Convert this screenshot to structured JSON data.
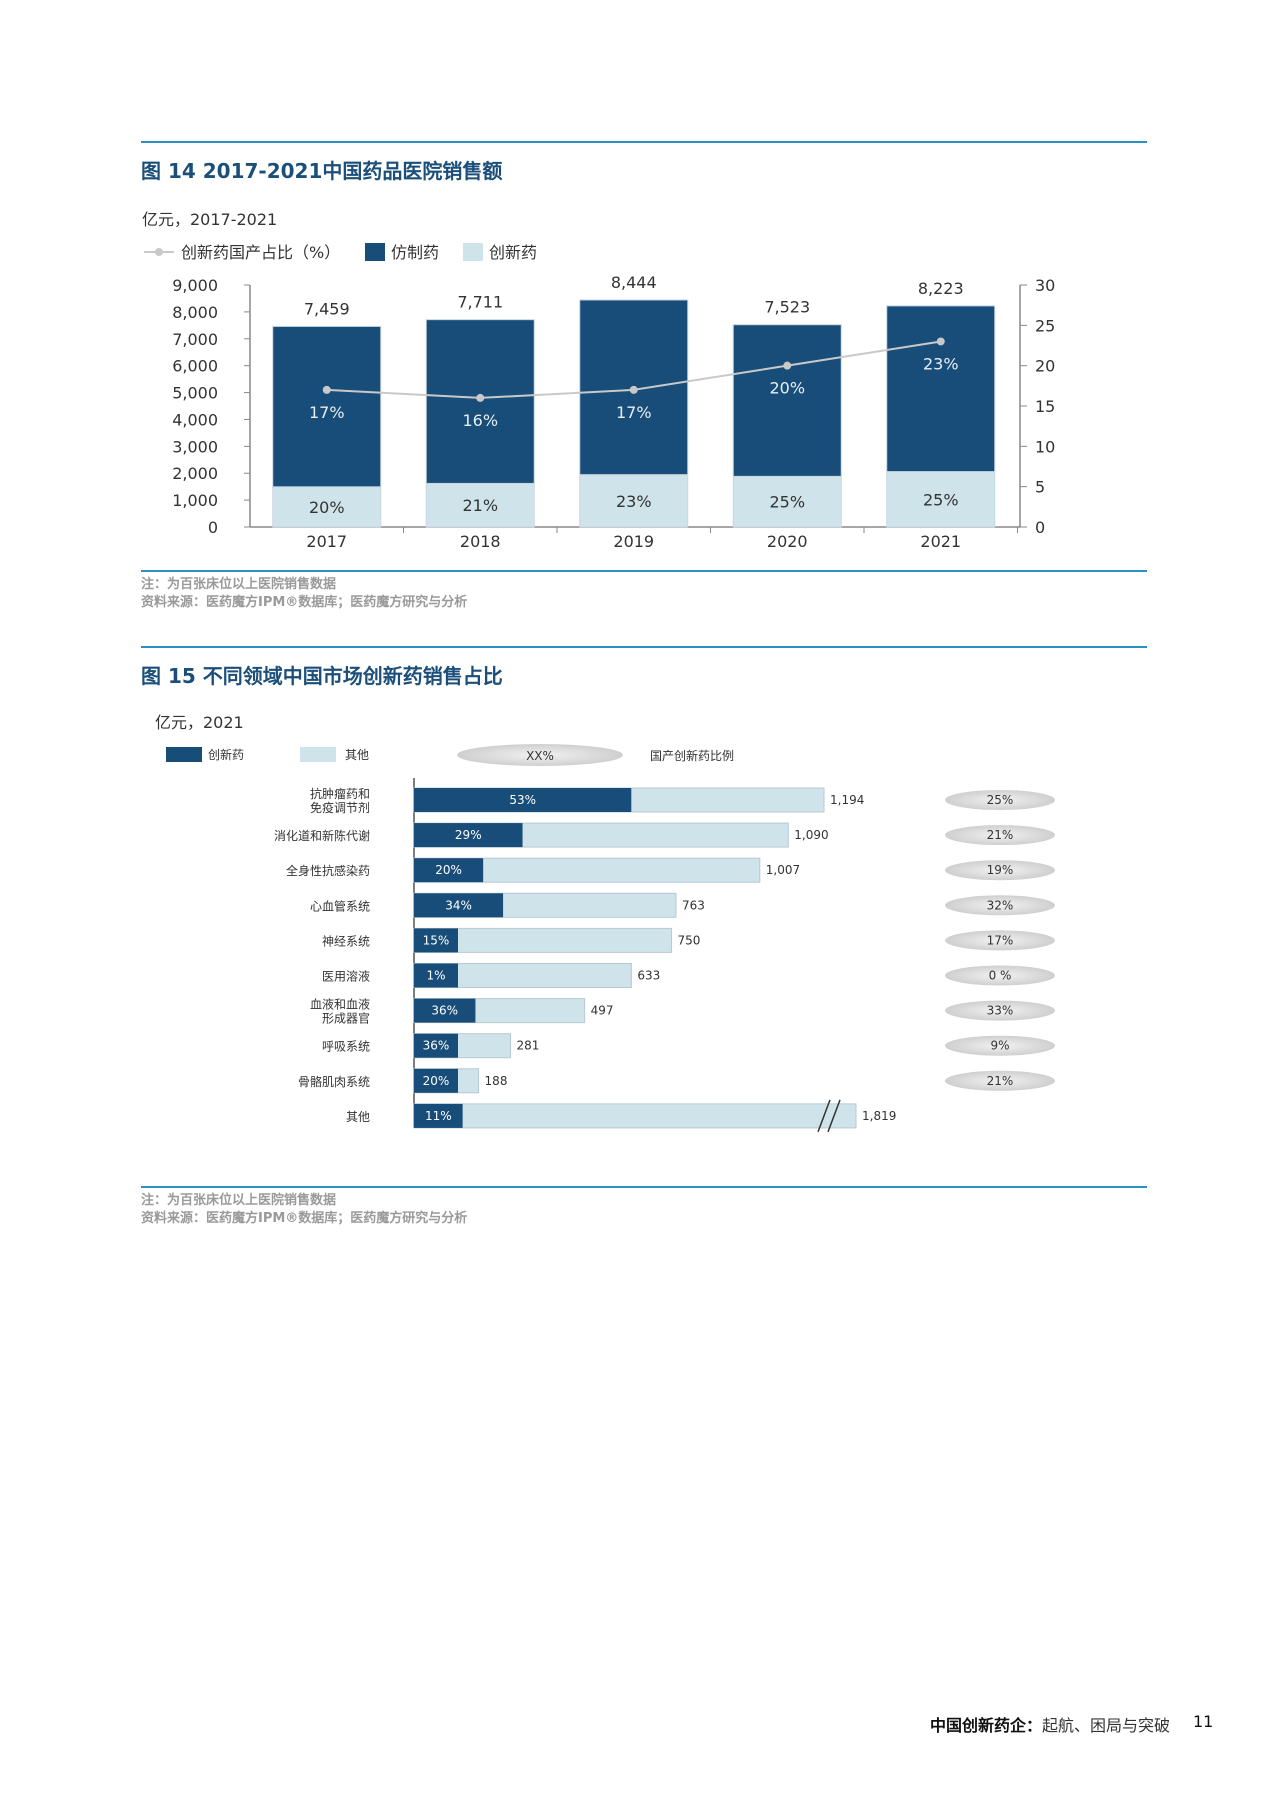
{
  "fig14": {
    "title": "图 14 2017-2021中国药品医院销售额",
    "unit": "亿元，2017-2021",
    "legend": {
      "line": "创新药国产占比（%）",
      "generic": "仿制药",
      "innovative": "创新药"
    },
    "note": "注：为百张床位以上医院销售数据",
    "source": "资料来源：医药魔方IPM®数据库；医药魔方研究与分析"
  },
  "fig15": {
    "title": "图 15 不同领域中国市场创新药销售占比",
    "unit": "亿元，2021",
    "legend": {
      "innovative": "创新药",
      "other": "其他",
      "pill": "XX%",
      "ratio": "国产创新药比例"
    },
    "note": "注：为百张床位以上医院销售数据",
    "source": "资料来源：医药魔方IPM®数据库；医药魔方研究与分析"
  },
  "colors": {
    "dark": "#174d78",
    "light": "#cfe3eb",
    "rule": "#2b8fc2",
    "title": "#1b4f7a",
    "line": "#c9c9c9"
  },
  "footer": {
    "title_bold": "中国创新药企：",
    "title_rest": "起航、困局与突破",
    "page": "11"
  },
  "chart_data": [
    {
      "type": "bar",
      "stacked": true,
      "categories": [
        "2017",
        "2018",
        "2019",
        "2020",
        "2021"
      ],
      "totals": [
        7459,
        7711,
        8444,
        7523,
        8223
      ],
      "total_labels": [
        "7,459",
        "7,711",
        "8,444",
        "7,523",
        "8,223"
      ],
      "innovative_share_pct": [
        20,
        21,
        23,
        25,
        25
      ],
      "generic_share_pct": [
        80,
        79,
        77,
        75,
        75
      ],
      "innovative_labels": [
        "20%",
        "21%",
        "23%",
        "25%",
        "25%"
      ],
      "domestic_innovative_ratio_pct": [
        17,
        16,
        17,
        20,
        23
      ],
      "ratio_labels": [
        "17%",
        "16%",
        "17%",
        "20%",
        "23%"
      ],
      "ylim": [
        0,
        9000
      ],
      "yticks": [
        "9,000",
        "8,000",
        "7,000",
        "6,000",
        "5,000",
        "4,000",
        "3,000",
        "2,000",
        "1,000",
        "0"
      ],
      "y2lim": [
        0,
        30
      ],
      "y2ticks": [
        "30",
        "25",
        "20",
        "15",
        "10",
        "5",
        "0"
      ]
    },
    {
      "type": "bar",
      "orientation": "horizontal",
      "categories": [
        [
          "抗肿瘤药和",
          "免疫调节剂"
        ],
        [
          "消化道和新陈代谢"
        ],
        [
          "全身性抗感染药"
        ],
        [
          "心血管系统"
        ],
        [
          "神经系统"
        ],
        [
          "医用溶液"
        ],
        [
          "血液和血液",
          "形成器官"
        ],
        [
          "呼吸系统"
        ],
        [
          "骨骼肌肉系统"
        ],
        [
          "其他"
        ]
      ],
      "totals": [
        1194,
        1090,
        1007,
        763,
        750,
        633,
        497,
        281,
        188,
        1819
      ],
      "total_labels": [
        "1,194",
        "1,090",
        "1,007",
        "763",
        "750",
        "633",
        "497",
        "281",
        "188",
        "1,819"
      ],
      "innovative_share_labels": [
        "53%",
        "29%",
        "20%",
        "34%",
        "15%",
        "1%",
        "36%",
        "36%",
        "20%",
        "11%"
      ],
      "domestic_ratio_labels": [
        "25%",
        "21%",
        "19%",
        "32%",
        "17%",
        "0 %",
        "33%",
        "9%",
        "21%"
      ],
      "axis_break_on_last": true
    }
  ]
}
